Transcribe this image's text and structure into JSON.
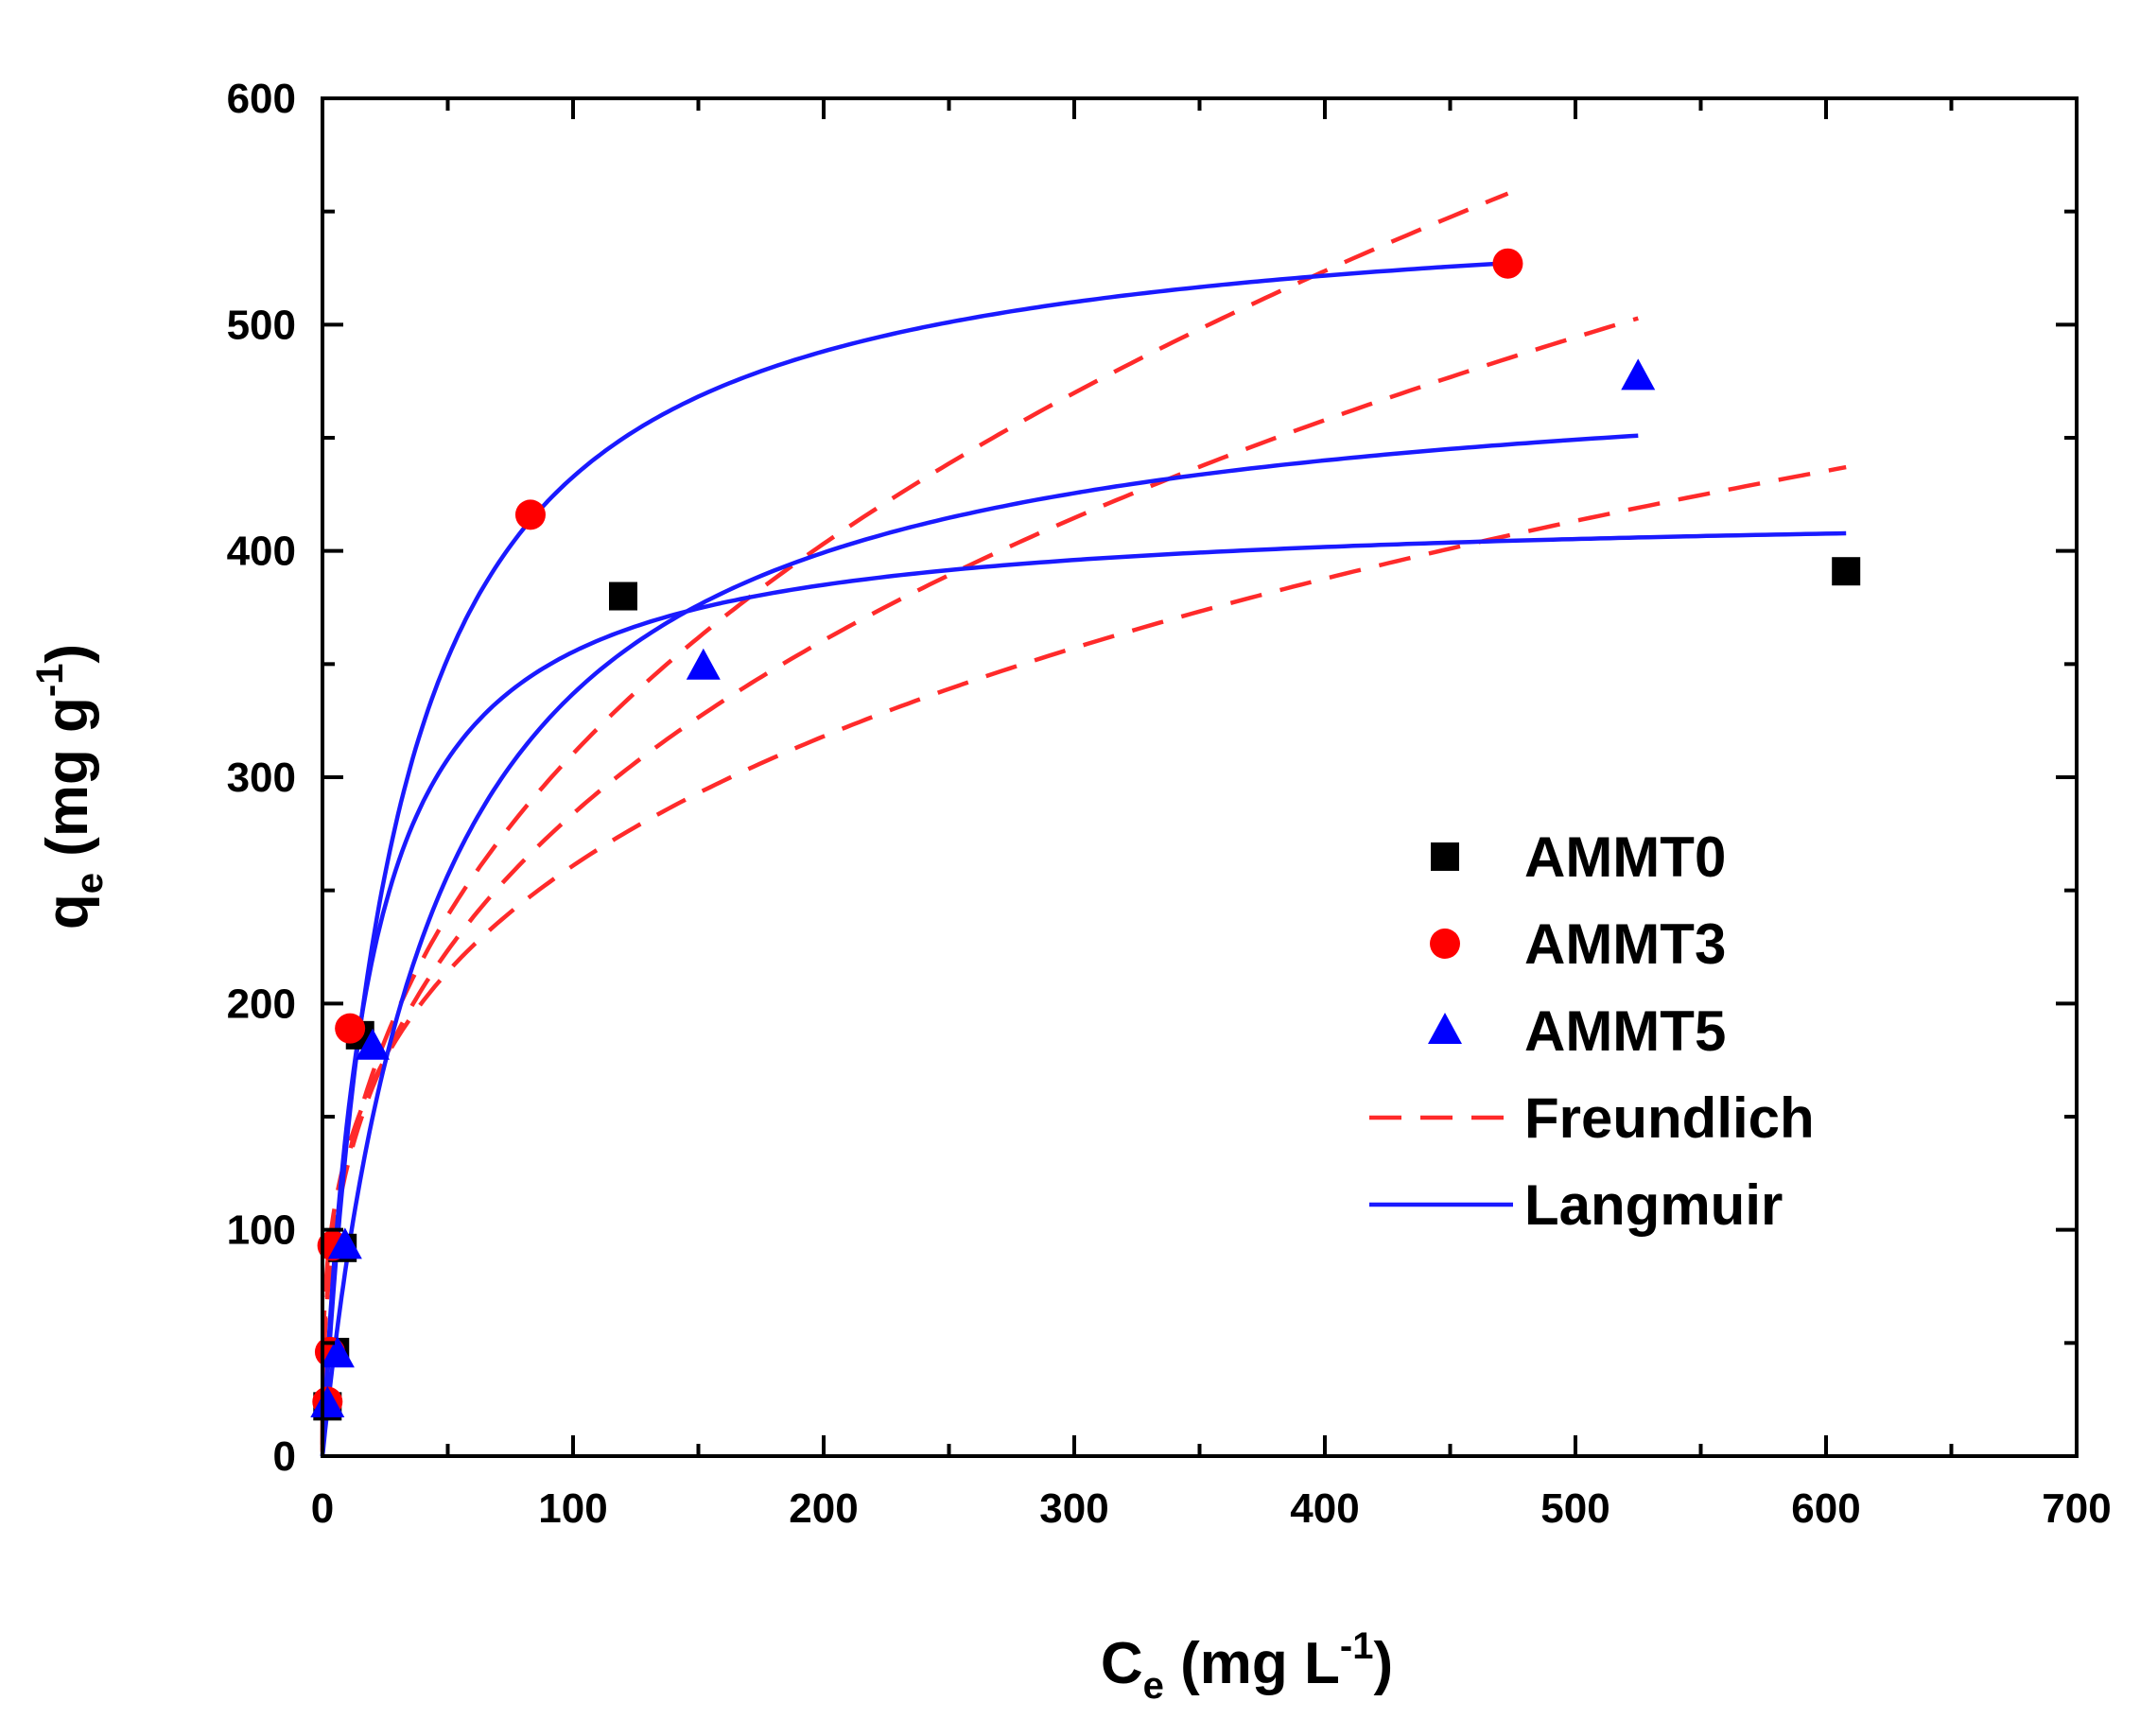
{
  "chart_data": {
    "type": "scatter",
    "title": "",
    "xlabel": {
      "main": "C",
      "sub": "e",
      "unit_pre": " (mg L",
      "sup": "-1",
      "unit_post": ")"
    },
    "ylabel": {
      "main": "q",
      "sub": "e",
      "unit_pre": " (mg g",
      "sup": "-1",
      "unit_post": ")"
    },
    "xlim": [
      0,
      700
    ],
    "ylim": [
      0,
      600
    ],
    "xticks": [
      0,
      100,
      200,
      300,
      400,
      500,
      600,
      700
    ],
    "yticks": [
      0,
      100,
      200,
      300,
      400,
      500,
      600
    ],
    "xtick_labels": [
      "0",
      "100",
      "200",
      "300",
      "400",
      "500",
      "600",
      "700"
    ],
    "ytick_labels": [
      "0",
      "100",
      "200",
      "300",
      "400",
      "500",
      "600"
    ],
    "grid": false,
    "legend_position": "right",
    "series": [
      {
        "name": "AMMT0",
        "marker": "square",
        "color": "#000000",
        "points": [
          [
            2,
            22
          ],
          [
            5,
            46
          ],
          [
            8,
            92
          ],
          [
            15,
            186
          ],
          [
            120,
            380
          ],
          [
            608,
            391
          ]
        ],
        "langmuir": {
          "qmax": 420,
          "KL": 0.055,
          "xmax": 608
        },
        "freundlich": {
          "KF": 70,
          "n": 3.5,
          "xmax": 608
        }
      },
      {
        "name": "AMMT3",
        "marker": "circle",
        "color": "#ff0000",
        "points": [
          [
            2,
            24
          ],
          [
            3,
            46
          ],
          [
            4,
            93
          ],
          [
            11,
            189
          ],
          [
            83,
            416
          ],
          [
            473,
            527
          ]
        ],
        "langmuir": {
          "qmax": 560,
          "KL": 0.034,
          "xmax": 473
        },
        "freundlich": {
          "KF": 54.6,
          "n": 2.65,
          "xmax": 473
        }
      },
      {
        "name": "AMMT5",
        "marker": "triangle",
        "color": "#0000ff",
        "points": [
          [
            2,
            23
          ],
          [
            6,
            45
          ],
          [
            9,
            93
          ],
          [
            20,
            181
          ],
          [
            152,
            349
          ],
          [
            525,
            477
          ]
        ],
        "langmuir": {
          "qmax": 490,
          "KL": 0.022,
          "xmax": 525
        },
        "freundlich": {
          "KF": 58,
          "n": 2.9,
          "xmax": 525
        }
      }
    ],
    "legend": [
      {
        "label": "AMMT0",
        "kind": "square",
        "color": "#000000"
      },
      {
        "label": "AMMT3",
        "kind": "circle",
        "color": "#ff0000"
      },
      {
        "label": "AMMT5",
        "kind": "triangle",
        "color": "#0000ff"
      },
      {
        "label": "Freundlich",
        "kind": "dashed-line",
        "color": "#ff0000"
      },
      {
        "label": "Langmuir",
        "kind": "solid-line",
        "color": "#0000ff"
      }
    ]
  }
}
